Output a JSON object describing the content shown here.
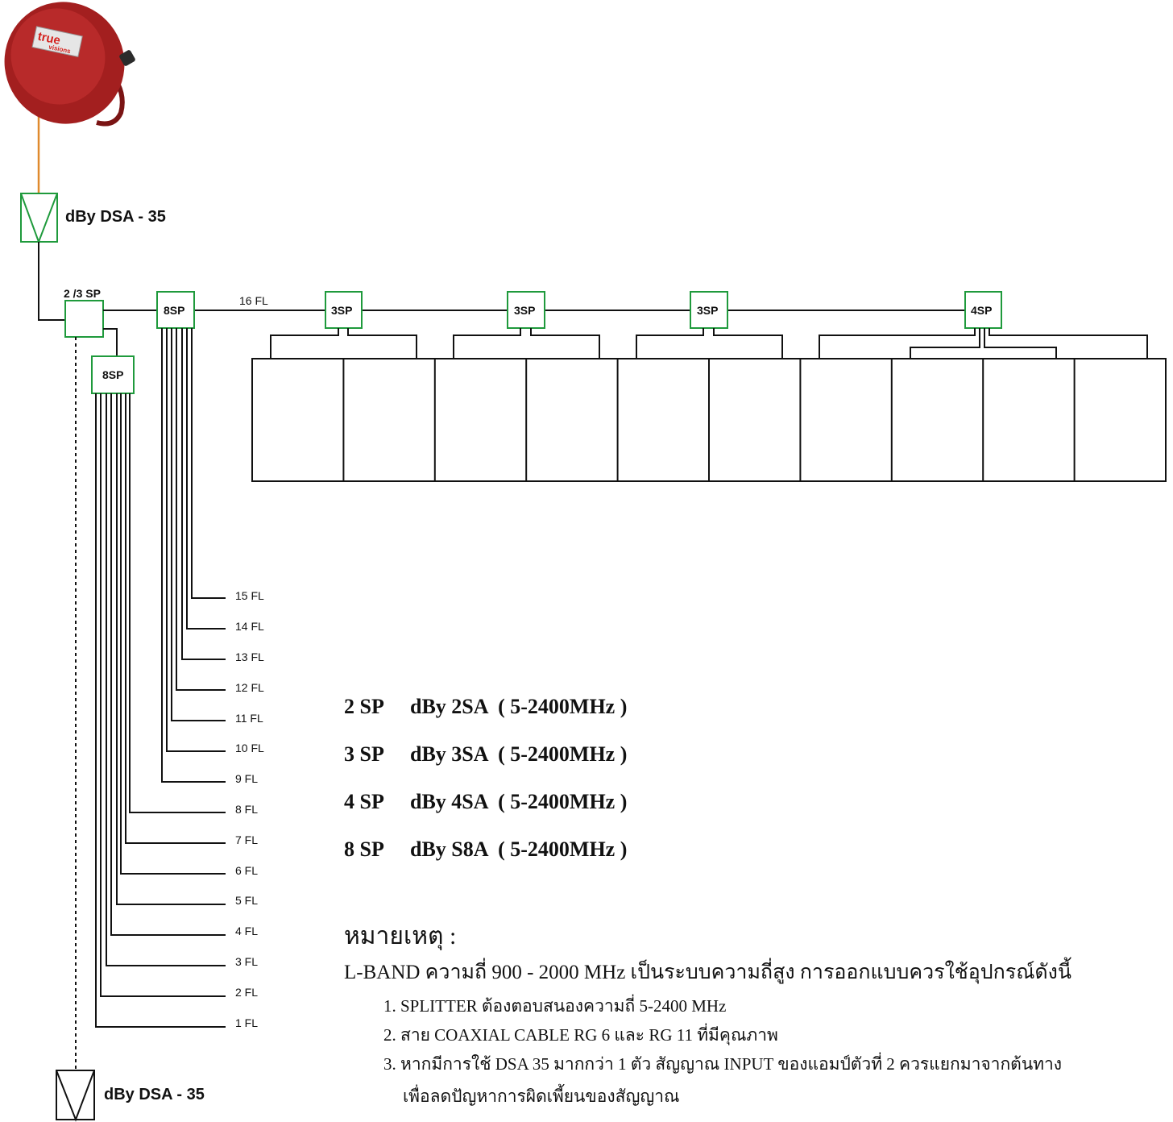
{
  "dish": {
    "brand_top": "true",
    "brand_bottom": "visions"
  },
  "amplifiers": {
    "top_label": "dBy DSA - 35",
    "bottom_label": "dBy DSA - 35"
  },
  "splitters": {
    "main": "2 /3 SP",
    "lower_8sp": "8SP",
    "upper_8sp": "8SP",
    "row": [
      "3SP",
      "3SP",
      "3SP",
      "4SP"
    ]
  },
  "trunk_label": "16 FL",
  "floors": [
    "15 FL",
    "14 FL",
    "13 FL",
    "12 FL",
    "11 FL",
    "10 FL",
    "9 FL",
    "8 FL",
    "7 FL",
    "6 FL",
    "5 FL",
    "4 FL",
    "3 FL",
    "2 FL",
    "1 FL"
  ],
  "legend": [
    {
      "code": "2 SP",
      "desc": "dBy 2SA  ( 5-2400MHz )"
    },
    {
      "code": "3 SP",
      "desc": "dBy 3SA  ( 5-2400MHz )"
    },
    {
      "code": "4 SP",
      "desc": "dBy 4SA  ( 5-2400MHz )"
    },
    {
      "code": "8 SP",
      "desc": "dBy S8A  ( 5-2400MHz )"
    }
  ],
  "notes": {
    "title": "หมายเหตุ :",
    "intro": "L-BAND ความถี่ 900 - 2000 MHz เป็นระบบความถี่สูง การออกแบบควรใช้อุปกรณ์ดังนี้",
    "items": [
      "1. SPLITTER ต้องตอบสนองความถี่ 5-2400 MHz",
      "2. สาย COAXIAL CABLE  RG 6 และ RG 11 ที่มีคุณภาพ",
      "3. หากมีการใช้ DSA 35 มากกว่า 1 ตัว สัญญาณ INPUT ของแอมป์ตัวที่ 2 ควรแยกมาจากต้นทาง",
      "เพื่อลดปัญหาการผิดเพี้ยนของสัญญาณ"
    ]
  },
  "colors": {
    "device_border": "#1f9a3c",
    "dish": "#a31f1f",
    "lnb_cable": "#e08a2e",
    "line": "#111111"
  }
}
